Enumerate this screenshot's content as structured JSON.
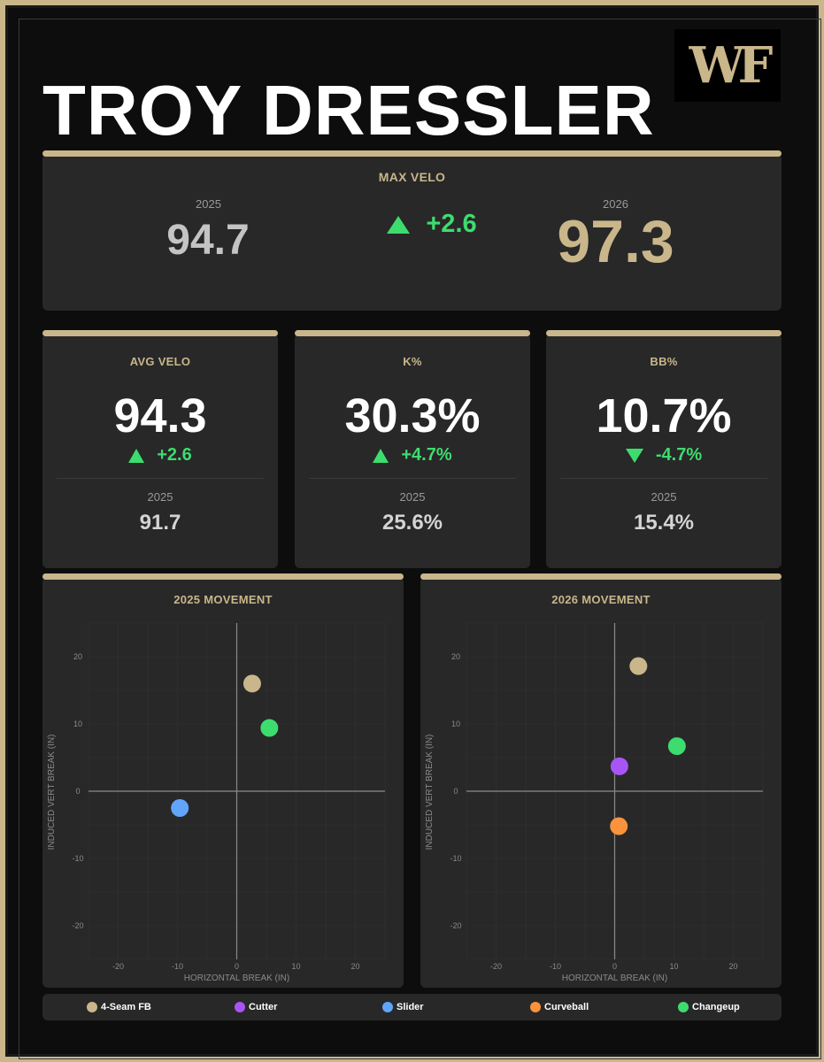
{
  "player_name": "TROY DRESSLER",
  "logo_text": "WF",
  "colors": {
    "gold": "#c9b68a",
    "green": "#3ddc6f",
    "card": "#282828",
    "background": "#0d0d0d",
    "fourseam": "#c9b68a",
    "cutter": "#a855f7",
    "slider": "#60a5fa",
    "curveball": "#fb923c",
    "changeup": "#3ddc6f"
  },
  "max_velo": {
    "title": "MAX VELO",
    "year_prev": "2025",
    "value_prev": "94.7",
    "delta": "+2.6",
    "year_curr": "2026",
    "value_curr": "97.3"
  },
  "stats": [
    {
      "title": "AVG VELO",
      "value": "94.3",
      "delta": "+2.6",
      "direction": "up",
      "prev_year": "2025",
      "prev_value": "91.7"
    },
    {
      "title": "K%",
      "value": "30.3%",
      "delta": "+4.7%",
      "direction": "up",
      "prev_year": "2025",
      "prev_value": "25.6%"
    },
    {
      "title": "BB%",
      "value": "10.7%",
      "delta": "-4.7%",
      "direction": "down",
      "prev_year": "2025",
      "prev_value": "15.4%"
    }
  ],
  "chart_data": [
    {
      "type": "scatter",
      "title": "2025 MOVEMENT",
      "xlabel": "HORIZONTAL BREAK (IN)",
      "ylabel": "INDUCED VERT BREAK (IN)",
      "xlim": [
        -25,
        25
      ],
      "ylim": [
        -25,
        25
      ],
      "xticks": [
        "-20",
        "-10",
        "0",
        "10",
        "20"
      ],
      "yticks": [
        "20",
        "10",
        "0",
        "-10",
        "-20"
      ],
      "grid": true,
      "points": [
        {
          "pitch": "4-Seam FB",
          "x": 2.6,
          "y": 16.0,
          "color": "#c9b68a"
        },
        {
          "pitch": "Changeup",
          "x": 5.5,
          "y": 9.4,
          "color": "#3ddc6f"
        },
        {
          "pitch": "Slider",
          "x": -9.6,
          "y": -2.5,
          "color": "#60a5fa"
        }
      ]
    },
    {
      "type": "scatter",
      "title": "2026 MOVEMENT",
      "xlabel": "HORIZONTAL BREAK (IN)",
      "ylabel": "INDUCED VERT BREAK (IN)",
      "xlim": [
        -25,
        25
      ],
      "ylim": [
        -25,
        25
      ],
      "xticks": [
        "-20",
        "-10",
        "0",
        "10",
        "20"
      ],
      "yticks": [
        "20",
        "10",
        "0",
        "-10",
        "-20"
      ],
      "grid": true,
      "points": [
        {
          "pitch": "4-Seam FB",
          "x": 4.0,
          "y": 18.6,
          "color": "#c9b68a"
        },
        {
          "pitch": "Changeup",
          "x": 10.5,
          "y": 6.7,
          "color": "#3ddc6f"
        },
        {
          "pitch": "Cutter",
          "x": 0.8,
          "y": 3.7,
          "color": "#a855f7"
        },
        {
          "pitch": "Curveball",
          "x": 0.7,
          "y": -5.2,
          "color": "#fb923c"
        }
      ]
    }
  ],
  "legend": [
    {
      "label": "4-Seam FB",
      "color": "#c9b68a"
    },
    {
      "label": "Cutter",
      "color": "#a855f7"
    },
    {
      "label": "Slider",
      "color": "#60a5fa"
    },
    {
      "label": "Curveball",
      "color": "#fb923c"
    },
    {
      "label": "Changeup",
      "color": "#3ddc6f"
    }
  ]
}
